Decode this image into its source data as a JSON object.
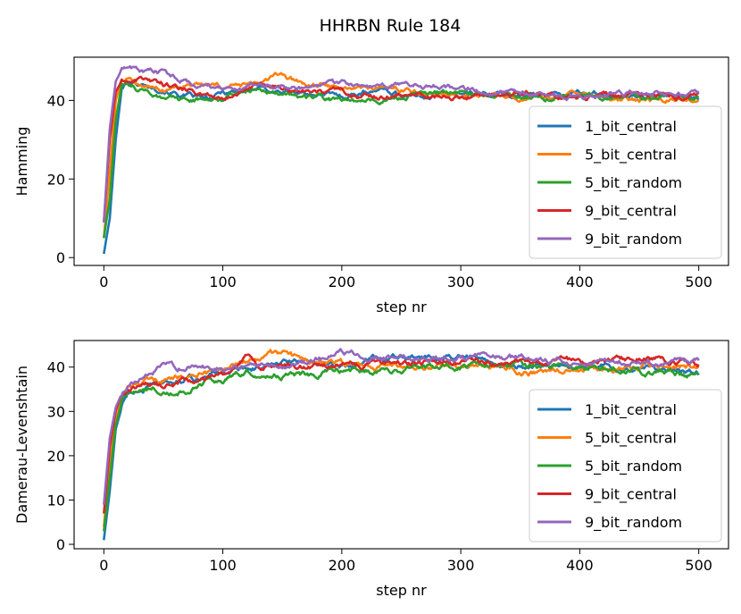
{
  "figure": {
    "title": "HHRBN Rule 184"
  },
  "colors": {
    "1_bit_central": "#1f77b4",
    "5_bit_central": "#ff7f0e",
    "5_bit_random": "#2ca02c",
    "9_bit_central": "#d62728",
    "9_bit_random": "#9467bd"
  },
  "chart_data": [
    {
      "type": "line",
      "xlabel": "step nr",
      "ylabel": "Hamming",
      "xlim": [
        -25,
        525
      ],
      "ylim": [
        -2,
        51
      ],
      "xticks": [
        0,
        100,
        200,
        300,
        400,
        500
      ],
      "yticks": [
        0,
        20,
        40
      ],
      "legend": "lower-right",
      "grid": false,
      "series": [
        {
          "name": "1_bit_central",
          "points": [
            [
              0,
              1
            ],
            [
              5,
              10
            ],
            [
              10,
              30
            ],
            [
              15,
              43
            ],
            [
              20,
              45
            ],
            [
              30,
              44
            ],
            [
              50,
              43
            ],
            [
              70,
              41
            ],
            [
              90,
              40
            ],
            [
              100,
              42
            ],
            [
              130,
              43
            ],
            [
              160,
              42
            ],
            [
              200,
              41
            ],
            [
              230,
              43
            ],
            [
              260,
              41
            ],
            [
              300,
              42
            ],
            [
              350,
              41
            ],
            [
              400,
              42
            ],
            [
              450,
              41
            ],
            [
              500,
              41
            ]
          ]
        },
        {
          "name": "5_bit_central",
          "points": [
            [
              0,
              5
            ],
            [
              5,
              22
            ],
            [
              10,
              40
            ],
            [
              15,
              45
            ],
            [
              20,
              46
            ],
            [
              30,
              44
            ],
            [
              50,
              43
            ],
            [
              70,
              44
            ],
            [
              100,
              43
            ],
            [
              130,
              44
            ],
            [
              145,
              46
            ],
            [
              170,
              44
            ],
            [
              200,
              43
            ],
            [
              240,
              43
            ],
            [
              270,
              42
            ],
            [
              300,
              41
            ],
            [
              350,
              40
            ],
            [
              400,
              41
            ],
            [
              450,
              40
            ],
            [
              500,
              40
            ]
          ]
        },
        {
          "name": "5_bit_random",
          "points": [
            [
              0,
              5
            ],
            [
              5,
              15
            ],
            [
              10,
              35
            ],
            [
              15,
              44
            ],
            [
              20,
              45
            ],
            [
              30,
              43
            ],
            [
              50,
              41
            ],
            [
              70,
              40
            ],
            [
              100,
              41
            ],
            [
              130,
              43
            ],
            [
              160,
              41
            ],
            [
              200,
              40
            ],
            [
              230,
              40
            ],
            [
              260,
              41
            ],
            [
              300,
              42
            ],
            [
              350,
              41
            ],
            [
              400,
              41
            ],
            [
              450,
              41
            ],
            [
              500,
              41
            ]
          ]
        },
        {
          "name": "9_bit_central",
          "points": [
            [
              0,
              9
            ],
            [
              5,
              30
            ],
            [
              10,
              42
            ],
            [
              15,
              45
            ],
            [
              20,
              45
            ],
            [
              30,
              46
            ],
            [
              50,
              44
            ],
            [
              70,
              43
            ],
            [
              100,
              41
            ],
            [
              130,
              44
            ],
            [
              160,
              42
            ],
            [
              200,
              42
            ],
            [
              230,
              41
            ],
            [
              260,
              42
            ],
            [
              300,
              41
            ],
            [
              350,
              42
            ],
            [
              400,
              41
            ],
            [
              450,
              41
            ],
            [
              500,
              41
            ]
          ]
        },
        {
          "name": "9_bit_random",
          "points": [
            [
              0,
              9
            ],
            [
              5,
              33
            ],
            [
              10,
              45
            ],
            [
              15,
              48
            ],
            [
              20,
              49
            ],
            [
              30,
              47
            ],
            [
              50,
              47
            ],
            [
              70,
              45
            ],
            [
              100,
              43
            ],
            [
              130,
              44
            ],
            [
              160,
              43
            ],
            [
              200,
              44
            ],
            [
              230,
              43
            ],
            [
              260,
              44
            ],
            [
              300,
              43
            ],
            [
              350,
              42
            ],
            [
              400,
              41
            ],
            [
              450,
              42
            ],
            [
              500,
              42
            ]
          ]
        }
      ]
    },
    {
      "type": "line",
      "xlabel": "step nr",
      "ylabel": "Damerau-Levenshtain",
      "xlim": [
        -25,
        525
      ],
      "ylim": [
        -1,
        46
      ],
      "xticks": [
        0,
        100,
        200,
        300,
        400,
        500
      ],
      "yticks": [
        0,
        10,
        20,
        30,
        40
      ],
      "legend": "lower-right",
      "grid": false,
      "series": [
        {
          "name": "1_bit_central",
          "points": [
            [
              0,
              1
            ],
            [
              5,
              12
            ],
            [
              10,
              26
            ],
            [
              15,
              31
            ],
            [
              20,
              34
            ],
            [
              30,
              35
            ],
            [
              50,
              36
            ],
            [
              70,
              37
            ],
            [
              100,
              39
            ],
            [
              130,
              40
            ],
            [
              160,
              41
            ],
            [
              200,
              40
            ],
            [
              230,
              42
            ],
            [
              260,
              42
            ],
            [
              300,
              42
            ],
            [
              350,
              40
            ],
            [
              400,
              40
            ],
            [
              450,
              40
            ],
            [
              500,
              39
            ]
          ]
        },
        {
          "name": "5_bit_central",
          "points": [
            [
              0,
              4
            ],
            [
              5,
              18
            ],
            [
              10,
              28
            ],
            [
              15,
              33
            ],
            [
              20,
              35
            ],
            [
              30,
              36
            ],
            [
              50,
              37
            ],
            [
              70,
              38
            ],
            [
              100,
              39
            ],
            [
              130,
              42
            ],
            [
              150,
              43
            ],
            [
              170,
              41
            ],
            [
              200,
              41
            ],
            [
              230,
              40
            ],
            [
              260,
              40
            ],
            [
              300,
              40
            ],
            [
              350,
              39
            ],
            [
              400,
              40
            ],
            [
              450,
              40
            ],
            [
              500,
              40
            ]
          ]
        },
        {
          "name": "5_bit_random",
          "points": [
            [
              0,
              3
            ],
            [
              5,
              15
            ],
            [
              10,
              27
            ],
            [
              15,
              32
            ],
            [
              20,
              34
            ],
            [
              30,
              35
            ],
            [
              50,
              35
            ],
            [
              70,
              35
            ],
            [
              90,
              37
            ],
            [
              100,
              37
            ],
            [
              120,
              39
            ],
            [
              150,
              38
            ],
            [
              170,
              38
            ],
            [
              200,
              39
            ],
            [
              230,
              39
            ],
            [
              260,
              40
            ],
            [
              300,
              40
            ],
            [
              350,
              40
            ],
            [
              400,
              40
            ],
            [
              450,
              39
            ],
            [
              500,
              38
            ]
          ]
        },
        {
          "name": "9_bit_central",
          "points": [
            [
              0,
              7
            ],
            [
              5,
              22
            ],
            [
              10,
              30
            ],
            [
              15,
              34
            ],
            [
              20,
              35
            ],
            [
              30,
              36
            ],
            [
              50,
              36
            ],
            [
              70,
              37
            ],
            [
              100,
              38
            ],
            [
              120,
              43
            ],
            [
              130,
              40
            ],
            [
              160,
              40
            ],
            [
              200,
              40
            ],
            [
              230,
              41
            ],
            [
              260,
              41
            ],
            [
              300,
              41
            ],
            [
              350,
              41
            ],
            [
              400,
              41
            ],
            [
              450,
              42
            ],
            [
              500,
              41
            ]
          ]
        },
        {
          "name": "9_bit_random",
          "points": [
            [
              0,
              9
            ],
            [
              5,
              24
            ],
            [
              10,
              31
            ],
            [
              15,
              34
            ],
            [
              20,
              36
            ],
            [
              30,
              37
            ],
            [
              50,
              40
            ],
            [
              70,
              40
            ],
            [
              100,
              40
            ],
            [
              130,
              41
            ],
            [
              160,
              41
            ],
            [
              200,
              43
            ],
            [
              220,
              43
            ],
            [
              250,
              42
            ],
            [
              300,
              42
            ],
            [
              350,
              42
            ],
            [
              400,
              41
            ],
            [
              450,
              41
            ],
            [
              500,
              41
            ]
          ]
        }
      ]
    }
  ]
}
